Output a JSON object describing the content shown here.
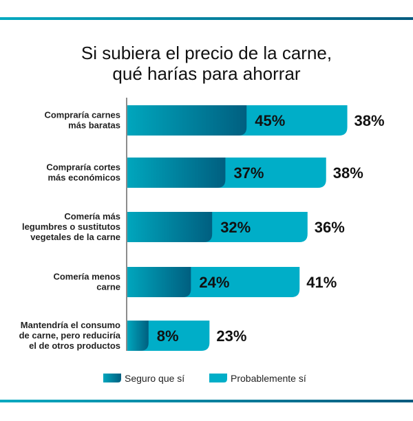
{
  "chart_data": {
    "type": "bar",
    "orientation": "horizontal",
    "stacked": true,
    "title": [
      "Si subiera el precio de la carne,",
      "qué harías para ahorrar"
    ],
    "categories": [
      [
        "Compraría carnes",
        "más baratas"
      ],
      [
        "Compraría cortes",
        "más económicos"
      ],
      [
        "Comería más",
        "legumbres o sustitutos",
        "vegetales de la carne"
      ],
      [
        "Comería menos",
        "carne"
      ],
      [
        "Mantendría el consumo",
        "de carne, pero reduciría",
        "el de otros productos"
      ]
    ],
    "series": [
      {
        "name": "Seguro que sí",
        "values": [
          45,
          37,
          32,
          24,
          8
        ],
        "color": "#006f8c"
      },
      {
        "name": "Probablemente sí",
        "values": [
          38,
          38,
          36,
          41,
          23
        ],
        "color": "#00aec8"
      }
    ],
    "value_suffix": "%",
    "legend": "bottom",
    "grid": false
  },
  "colors": {
    "accent_light": "#00a9c0",
    "accent_dark": "#005a7e"
  }
}
